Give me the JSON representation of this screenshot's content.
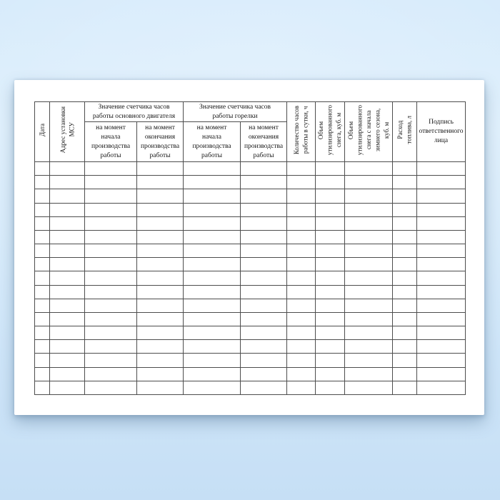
{
  "table": {
    "row_count": 17,
    "column_count": 11,
    "header": {
      "date": "Дата",
      "msu_address": "Адрес установки\nМСУ",
      "engine_counter_group": "Значение счетчика часов\nработы основного двигателя",
      "burner_counter_group": "Значение счетчика часов\nработы горелки",
      "engine_start": "на момент\nначала\nпроизводства\nработы",
      "engine_end": "на момент\nокончания\nпроизводства\nработы",
      "burner_start": "на момент\nначала\nпроизводства\nработы",
      "burner_end": "на момент\nокончания\nпроизводства\nработы",
      "hours_per_day": "Количество часов\nработы в сутки, ч",
      "snow_volume": "Объем\nутилизированного\nснега, куб. м",
      "snow_volume_season": "Объем\nутилизированного\nснега с начала\nзимнего сезона,\nкуб. м",
      "fuel_consumption": "Расход\nтоплива, л",
      "signature": "Подпись\nответственного\nлица"
    }
  },
  "colors": {
    "background_top": "#d9edfc",
    "background_bottom": "#c6dff5",
    "page": "#ffffff",
    "grid_line": "#4d4d4d",
    "text": "#161616"
  }
}
